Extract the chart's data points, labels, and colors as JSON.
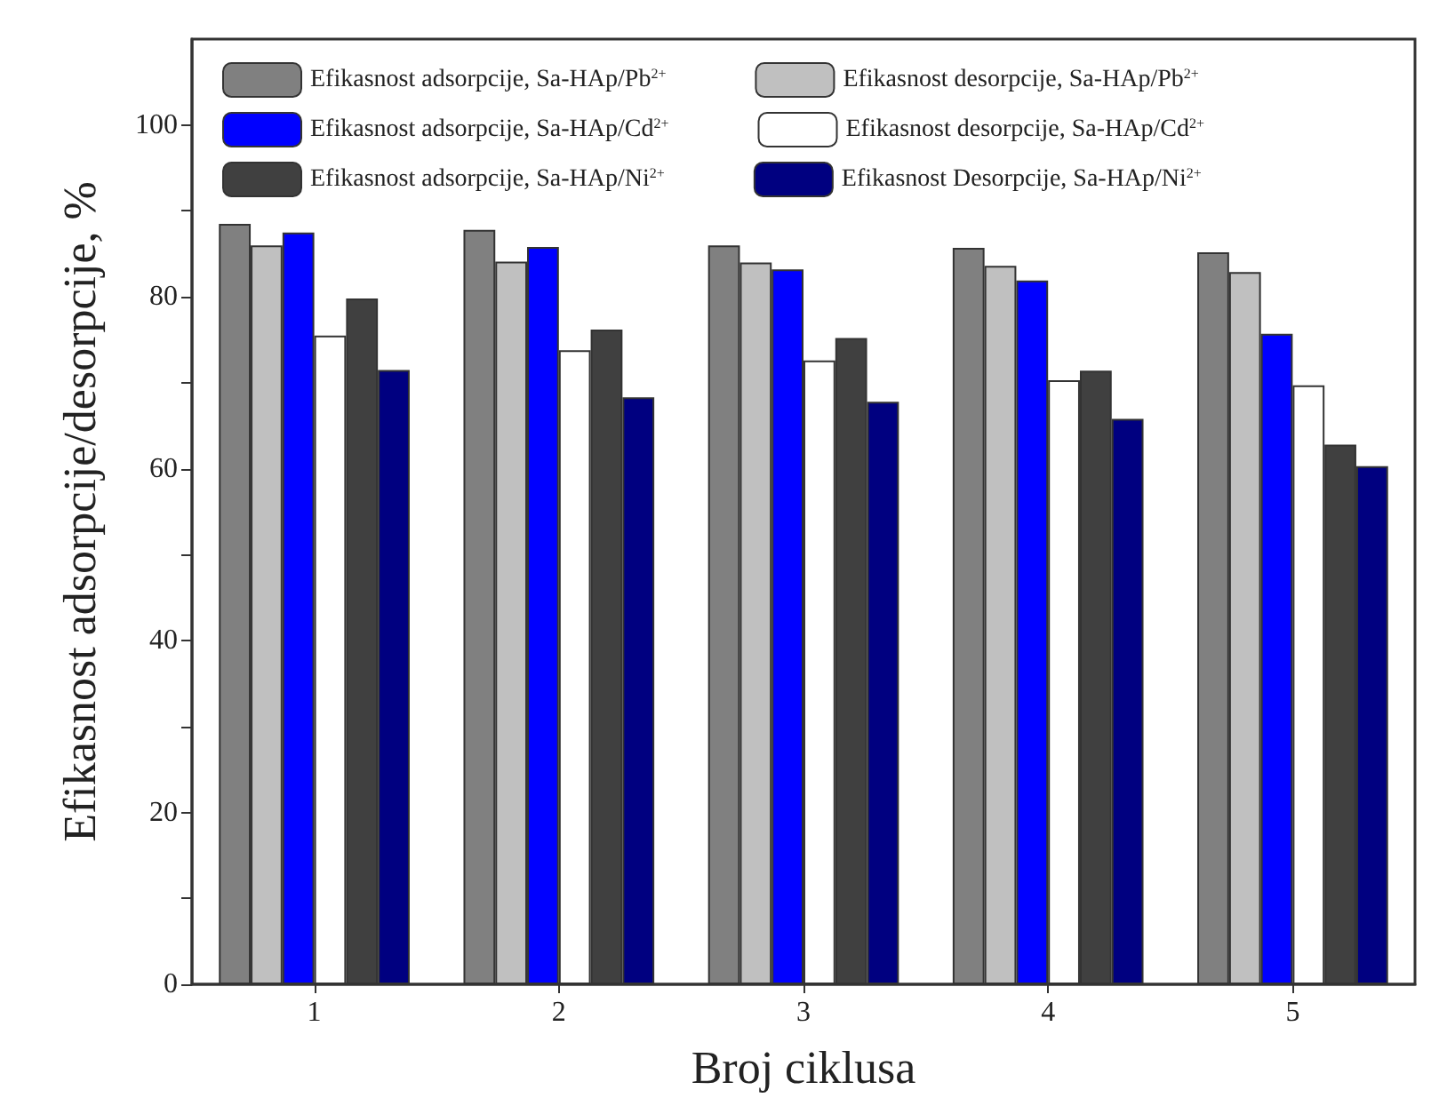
{
  "chart_data": {
    "type": "bar",
    "xlabel": "Broj ciklusa",
    "ylabel": "Efikasnost adsorpcije/desorpcije, %",
    "categories": [
      "1",
      "2",
      "3",
      "4",
      "5"
    ],
    "series": [
      {
        "name": "Efikasnost adsorpcije, Sa-HAp/Pb$^{2+}$",
        "color": "#808080",
        "values": [
          88.5,
          87.8,
          86,
          85.7,
          85.2
        ]
      },
      {
        "name": "Efikasnost desorpcije, Sa-HAp/Pb$^{2+}$",
        "color": "#c0c0c0",
        "values": [
          86,
          84.1,
          84,
          83.6,
          82.9
        ]
      },
      {
        "name": "Efikasnost adsorpcije, Sa-HAp/Cd$^{2+}$",
        "color": "#0000ff",
        "values": [
          87.5,
          85.8,
          83.2,
          81.9,
          75.7
        ]
      },
      {
        "name": "Efikasnost desorpcije, Sa-HAp/Cd$^{2+}$",
        "color": "#ffffff",
        "values": [
          75.5,
          73.8,
          72.6,
          70.3,
          69.7
        ]
      },
      {
        "name": "Efikasnost adsorpcije, Sa-HAp/Ni$^{2+}$",
        "color": "#404040",
        "values": [
          79.8,
          76.2,
          75.2,
          71.4,
          62.8
        ]
      },
      {
        "name": "Efikasnost Desorpcije, Sa-HAp/Ni$^{2+}$",
        "color": "#000080",
        "values": [
          71.5,
          68.3,
          67.8,
          65.8,
          60.3
        ]
      }
    ],
    "ylim": [
      0,
      110
    ],
    "yticks": [
      0,
      {
        "value": 10,
        "label": null
      },
      20,
      {
        "value": 30,
        "label": null
      },
      40,
      {
        "value": 50,
        "label": null
      },
      60,
      {
        "value": 70,
        "label": null
      },
      80,
      {
        "value": 90,
        "label": null
      },
      100
    ],
    "grid": false,
    "legend": "top"
  }
}
